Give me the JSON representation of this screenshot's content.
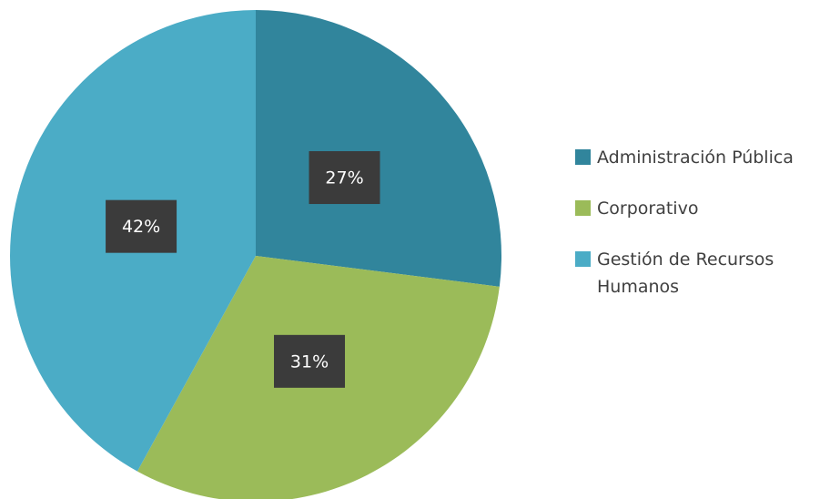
{
  "chart_data": {
    "type": "pie",
    "categories": [
      "Administración Pública",
      "Corporativo",
      "Gestión de Recursos Humanos"
    ],
    "values": [
      27,
      31,
      42
    ],
    "value_labels": [
      "27%",
      "31%",
      "42%"
    ],
    "colors": [
      "#31859c",
      "#9bbb59",
      "#4bacc6"
    ],
    "legend": "right"
  }
}
